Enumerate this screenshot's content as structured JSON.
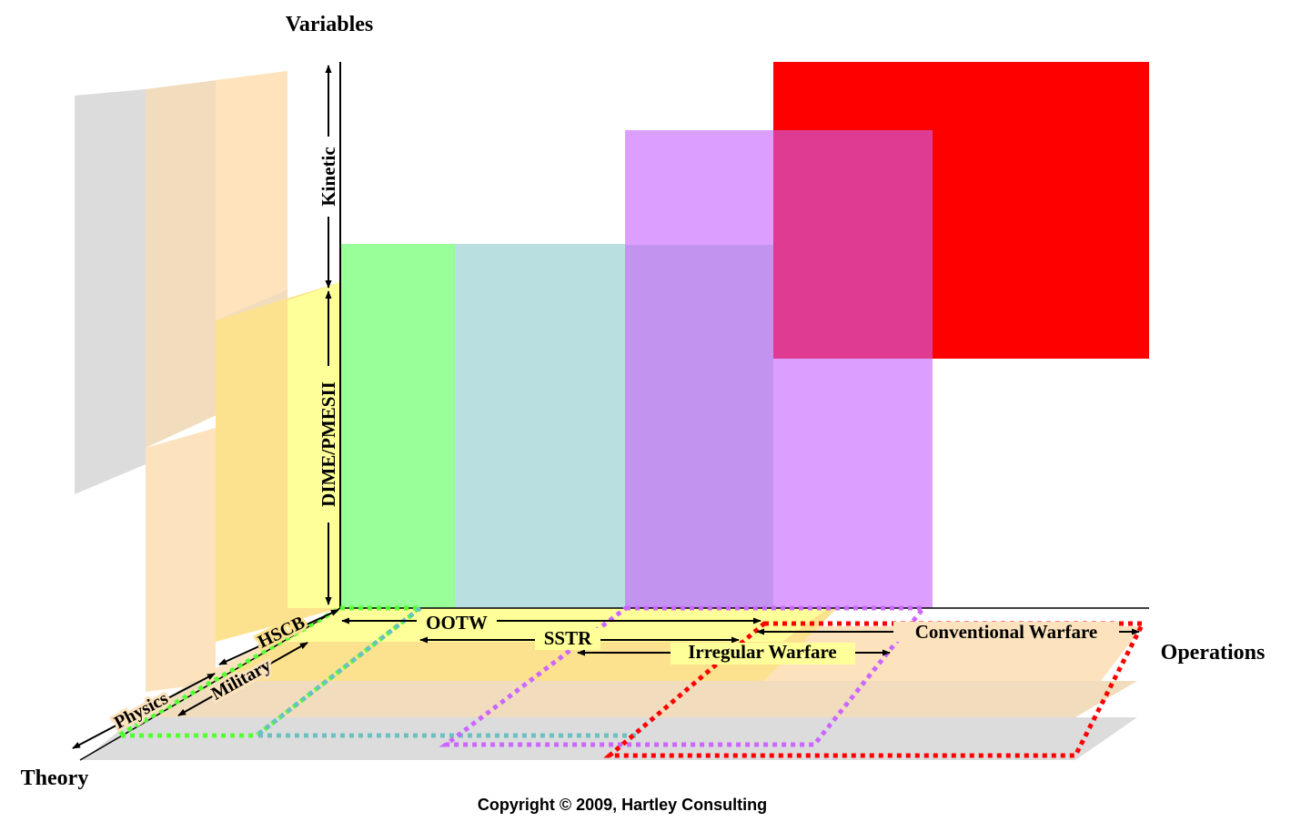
{
  "axes": {
    "vertical": "Variables",
    "horizontal": "Operations",
    "depth": "Theory"
  },
  "vertical_ranges": {
    "upper": "Kinetic",
    "lower": "DIME/PMESII"
  },
  "theory_ranges": {
    "inner": "HSCB",
    "middle": "Military",
    "outer": "Physics"
  },
  "operation_ranges": {
    "ootw": "OOTW",
    "sstr": "SSTR",
    "irregular": "Irregular Warfare",
    "conventional": "Conventional Warfare"
  },
  "colors": {
    "ootw": "#99ff99",
    "sstr": "#b9dfe0",
    "irregular": "#dd9fff",
    "conventional": "#ff0000",
    "overlap": "#e03b92",
    "irregular_sstr_overlap": "#c294f0",
    "hscb_plane": "#ffff99",
    "military_plane": "#ffe0b3",
    "physics_plane": "#dcdcdc"
  },
  "footer": {
    "copyright": "Copyright © 2009, Hartley Consulting"
  }
}
